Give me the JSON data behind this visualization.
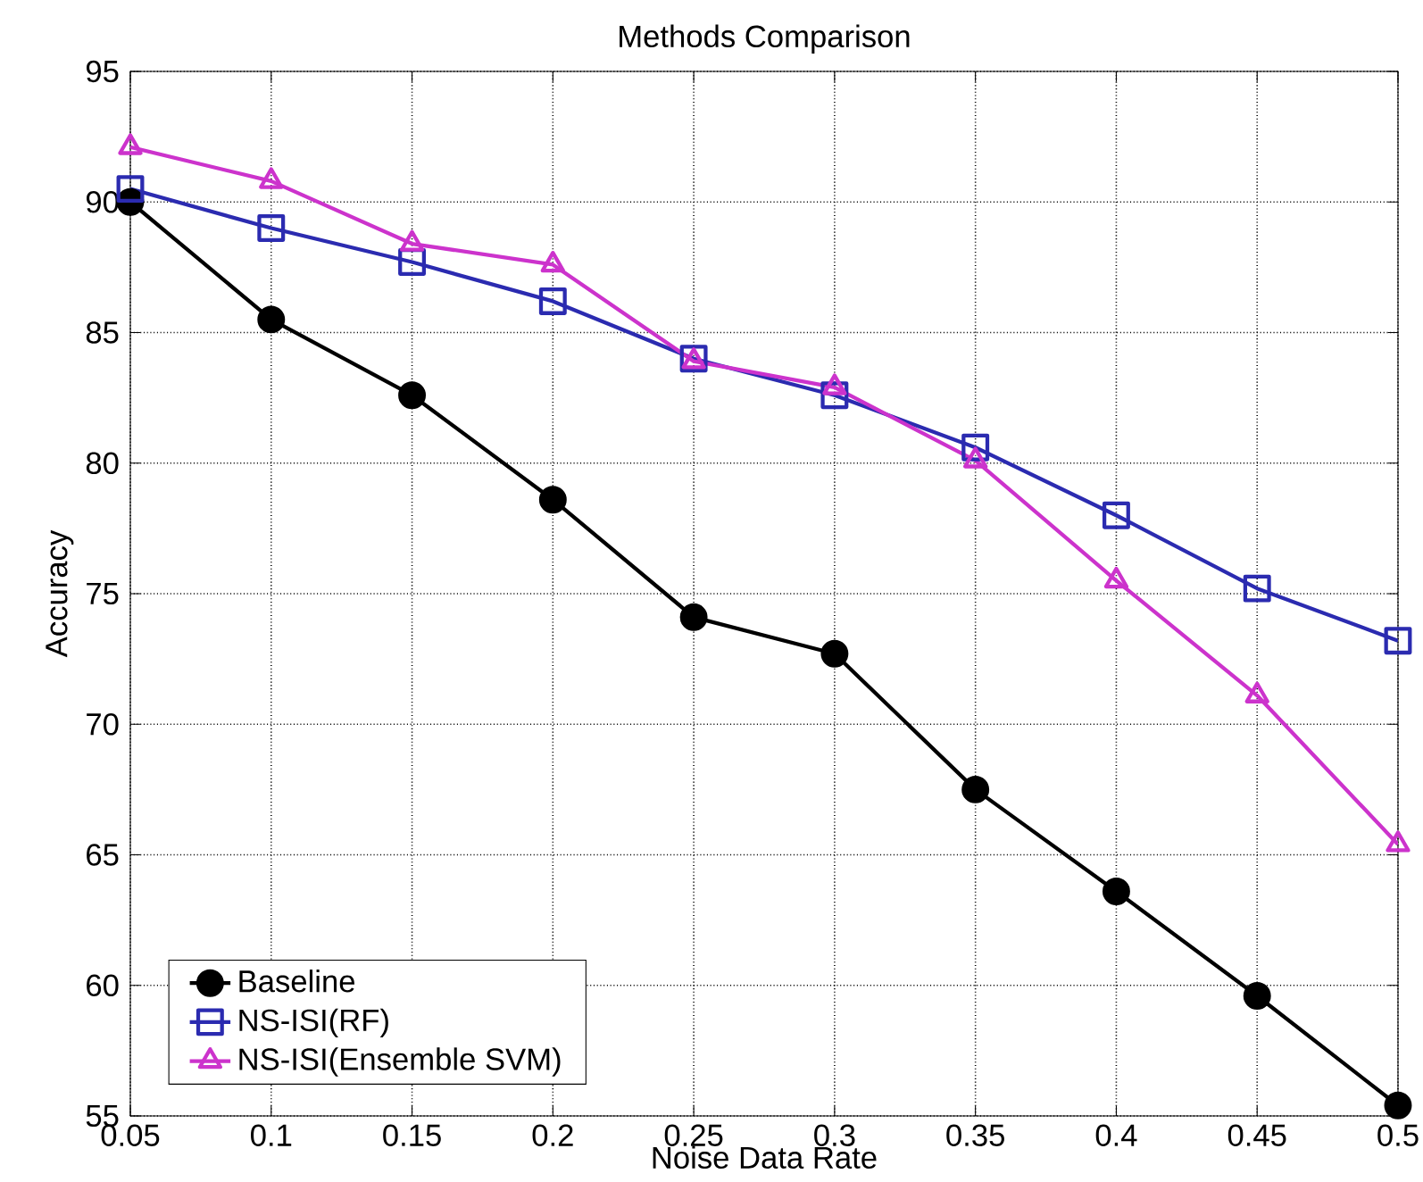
{
  "chart_data": {
    "type": "line",
    "title": "Methods Comparison",
    "xlabel": "Noise Data Rate",
    "ylabel": "Accuracy",
    "x": [
      0.05,
      0.1,
      0.15,
      0.2,
      0.25,
      0.3,
      0.35,
      0.4,
      0.45,
      0.5
    ],
    "series": [
      {
        "name": "Baseline",
        "color": "#000000",
        "marker": "circle",
        "values": [
          90.0,
          85.5,
          82.6,
          78.6,
          74.1,
          72.7,
          67.5,
          63.6,
          59.6,
          55.4
        ]
      },
      {
        "name": "NS-ISI(RF)",
        "color": "#2b2bb0",
        "marker": "square",
        "values": [
          90.5,
          89.0,
          87.7,
          86.2,
          84.0,
          82.6,
          80.6,
          78.0,
          75.2,
          73.2
        ]
      },
      {
        "name": "NS-ISI(Ensemble SVM)",
        "color": "#cc33cc",
        "marker": "triangle",
        "values": [
          92.1,
          90.8,
          88.4,
          87.6,
          83.9,
          82.9,
          80.1,
          75.5,
          71.1,
          65.4
        ]
      }
    ],
    "xlim": [
      0.05,
      0.5
    ],
    "ylim": [
      55,
      95
    ],
    "xticks": [
      0.05,
      0.1,
      0.15,
      0.2,
      0.25,
      0.3,
      0.35,
      0.4,
      0.45,
      0.5
    ],
    "yticks": [
      55,
      60,
      65,
      70,
      75,
      80,
      85,
      90,
      95
    ],
    "grid": true,
    "legend": "bottom left",
    "line_style": "solid"
  }
}
